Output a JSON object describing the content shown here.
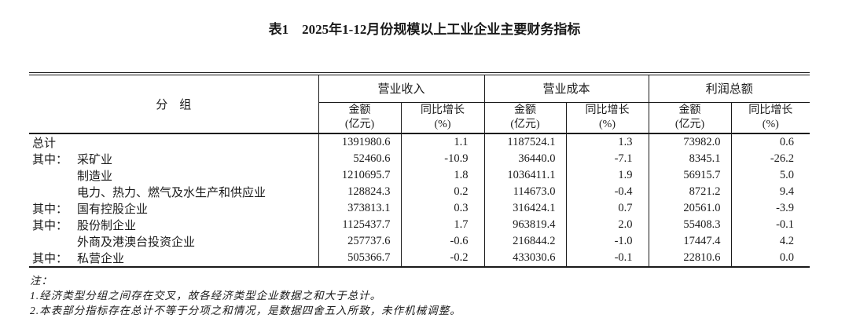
{
  "title": "表1　2025年1-12月份规模以上工业企业主要财务指标",
  "table": {
    "group_header": "分　组",
    "groups": [
      {
        "title": "营业收入"
      },
      {
        "title": "营业成本"
      },
      {
        "title": "利润总额"
      }
    ],
    "sub_headers": {
      "amount": {
        "line1": "金额",
        "line2": "(亿元)"
      },
      "yoy": {
        "line1": "同比增长",
        "line2": "(%)"
      }
    },
    "rows": [
      {
        "prefix": "",
        "indent": false,
        "label": "总计",
        "values": [
          "1391980.6",
          "1.1",
          "1187524.1",
          "1.3",
          "73982.0",
          "0.6"
        ]
      },
      {
        "prefix": "其中：",
        "indent": false,
        "label": "采矿业",
        "values": [
          "52460.6",
          "-10.9",
          "36440.0",
          "-7.1",
          "8345.1",
          "-26.2"
        ]
      },
      {
        "prefix": "",
        "indent": true,
        "label": "制造业",
        "values": [
          "1210695.7",
          "1.8",
          "1036411.1",
          "1.9",
          "56915.7",
          "5.0"
        ]
      },
      {
        "prefix": "",
        "indent": true,
        "label": "电力、热力、燃气及水生产和供应业",
        "values": [
          "128824.3",
          "0.2",
          "114673.0",
          "-0.4",
          "8721.2",
          "9.4"
        ]
      },
      {
        "prefix": "其中：",
        "indent": false,
        "label": "国有控股企业",
        "values": [
          "373813.1",
          "0.3",
          "316424.1",
          "0.7",
          "20561.0",
          "-3.9"
        ]
      },
      {
        "prefix": "其中：",
        "indent": false,
        "label": "股份制企业",
        "values": [
          "1125437.7",
          "1.7",
          "963819.4",
          "2.0",
          "55408.3",
          "-0.1"
        ]
      },
      {
        "prefix": "",
        "indent": true,
        "label": "外商及港澳台投资企业",
        "values": [
          "257737.6",
          "-0.6",
          "216844.2",
          "-1.0",
          "17447.4",
          "4.2"
        ]
      },
      {
        "prefix": "其中：",
        "indent": false,
        "label": "私营企业",
        "values": [
          "505366.7",
          "-0.2",
          "433030.6",
          "-0.1",
          "22810.6",
          "0.0"
        ]
      }
    ]
  },
  "notes": {
    "label": "注：",
    "items": [
      "1.经济类型分组之间存在交叉，故各经济类型企业数据之和大于总计。",
      "2.本表部分指标存在总计不等于分项之和情况，是数据四舍五入所致，未作机械调整。"
    ]
  },
  "colors": {
    "text": "#1a1a1a",
    "border": "#1a1a1a",
    "background": "#ffffff"
  }
}
